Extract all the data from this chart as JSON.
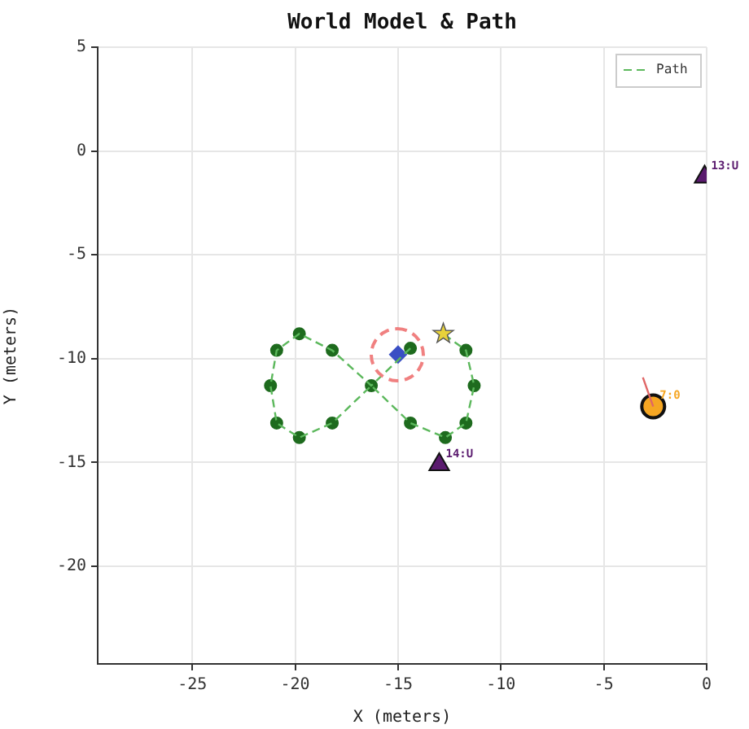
{
  "chart_data": {
    "type": "scatter",
    "title": "World Model & Path",
    "xlabel": "X (meters)",
    "ylabel": "Y (meters)",
    "xlim": [
      -29.6,
      0
    ],
    "ylim": [
      -24.7,
      5
    ],
    "xticks": [
      -25,
      -20,
      -15,
      -10,
      -5,
      0
    ],
    "yticks": [
      -20,
      -15,
      -10,
      -5,
      0,
      5
    ],
    "grid": true,
    "legend": "top right",
    "series": [
      {
        "name": "Path",
        "type": "line",
        "color": "#5cb85c",
        "line_style": "dashed",
        "marker": "none",
        "x": [
          -14.4,
          -16.3,
          -18.2,
          -19.8,
          -20.9,
          -21.2,
          -20.9,
          -19.8,
          -18.2,
          -16.3,
          -14.4,
          -12.7,
          -11.7,
          -11.3,
          -11.7,
          -12.8
        ],
        "values": [
          -9.5,
          -11.3,
          -9.6,
          -8.8,
          -9.6,
          -11.3,
          -13.1,
          -13.8,
          -13.1,
          -11.3,
          -13.1,
          -13.8,
          -13.1,
          -11.3,
          -9.6,
          -8.8
        ]
      },
      {
        "type": "scatter",
        "color": "#1e6b1e",
        "marker": "circle",
        "x": [
          -19.8,
          -20.9,
          -18.2,
          -21.2,
          -16.3,
          -20.9,
          -19.8,
          -18.2,
          -14.4,
          -12.7,
          -11.7,
          -11.3,
          -11.7,
          -14.4
        ],
        "values": [
          -8.8,
          -9.6,
          -9.6,
          -11.3,
          -11.3,
          -13.1,
          -13.8,
          -13.1,
          -13.1,
          -13.8,
          -13.1,
          -11.3,
          -9.6,
          -9.5
        ]
      },
      {
        "type": "line",
        "color": "#e06666",
        "line_style": "solid",
        "marker": "none",
        "x": [
          -2.6,
          -3.1
        ],
        "values": [
          -12.3,
          -10.9
        ]
      },
      {
        "type": "scatter",
        "color": "#3a4fc4",
        "marker": "diamond",
        "x": [
          -15.0
        ],
        "values": [
          -9.8
        ]
      },
      {
        "type": "scatter",
        "color": "#e8d23a",
        "marker": "star",
        "x": [
          -12.8
        ],
        "values": [
          -8.8
        ]
      },
      {
        "type": "scatter",
        "color": "#5a1a6e",
        "marker": "triangle",
        "x": [
          -13.0,
          -0.1
        ],
        "values": [
          -15.1,
          -1.25
        ]
      },
      {
        "type": "scatter",
        "color": "#f5a623",
        "marker": "circle",
        "x": [
          -2.6
        ],
        "values": [
          -12.3
        ]
      }
    ],
    "annotations": [
      {
        "text": "14:U",
        "x": -13.0,
        "y": -15.1
      },
      {
        "text": "13:U",
        "x": -0.1,
        "y": -1.25
      },
      {
        "text": "7:0",
        "x": -2.6,
        "y": -12.3
      }
    ]
  }
}
